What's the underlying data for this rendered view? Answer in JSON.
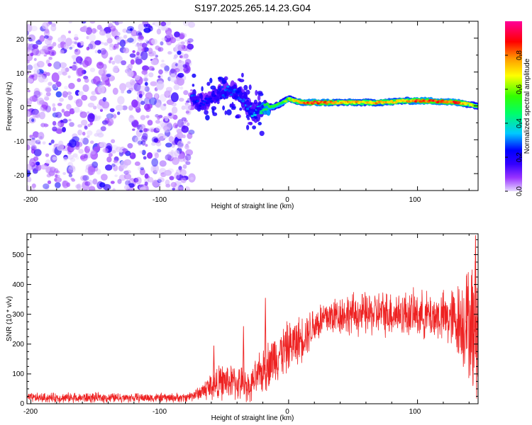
{
  "title": "S197.2025.265.14.23.G04",
  "chart_data": [
    {
      "type": "heatmap",
      "title": "S197.2025.265.14.23.G04",
      "xlabel": "Height of straight line (km)",
      "ylabel": "Frequency (Hz)",
      "xlim": [
        -203,
        147
      ],
      "ylim": [
        -25,
        25
      ],
      "xticks": [
        -200,
        -100,
        0,
        100
      ],
      "xtick_labels": [
        "-200",
        "-100",
        "0",
        "100"
      ],
      "yticks": [
        -20,
        -10,
        0,
        10,
        20
      ],
      "ytick_labels": [
        "-20",
        "-10",
        "0",
        "10",
        "20"
      ],
      "noise_region_x": [
        -203,
        -75
      ],
      "noise_amplitude": [
        0.1,
        0.25
      ],
      "signal_ridge": [
        {
          "x": -75,
          "f": 3.0,
          "amp": 0.3
        },
        {
          "x": -70,
          "f": 1.5,
          "amp": 0.25
        },
        {
          "x": -65,
          "f": 1.0,
          "amp": 0.25
        },
        {
          "x": -60,
          "f": 3.0,
          "amp": 0.25
        },
        {
          "x": -55,
          "f": 3.5,
          "amp": 0.25
        },
        {
          "x": -50,
          "f": 4.0,
          "amp": 0.3
        },
        {
          "x": -45,
          "f": 5.0,
          "amp": 0.3
        },
        {
          "x": -40,
          "f": 3.5,
          "amp": 0.3
        },
        {
          "x": -35,
          "f": 2.0,
          "amp": 0.3
        },
        {
          "x": -30,
          "f": -1.0,
          "amp": 0.35
        },
        {
          "x": -25,
          "f": -2.0,
          "amp": 0.4
        },
        {
          "x": -20,
          "f": -1.0,
          "amp": 0.5
        },
        {
          "x": -15,
          "f": -0.5,
          "amp": 0.55
        },
        {
          "x": -10,
          "f": 0.0,
          "amp": 0.55
        },
        {
          "x": -5,
          "f": 1.0,
          "amp": 0.55
        },
        {
          "x": 0,
          "f": 2.0,
          "amp": 0.65
        },
        {
          "x": 5,
          "f": 1.5,
          "amp": 0.7
        },
        {
          "x": 10,
          "f": 1.0,
          "amp": 0.85
        },
        {
          "x": 20,
          "f": 1.0,
          "amp": 0.9
        },
        {
          "x": 30,
          "f": 1.0,
          "amp": 0.85
        },
        {
          "x": 40,
          "f": 1.0,
          "amp": 0.75
        },
        {
          "x": 50,
          "f": 1.0,
          "amp": 0.8
        },
        {
          "x": 60,
          "f": 1.0,
          "amp": 0.75
        },
        {
          "x": 70,
          "f": 1.0,
          "amp": 0.8
        },
        {
          "x": 80,
          "f": 1.2,
          "amp": 0.8
        },
        {
          "x": 90,
          "f": 1.5,
          "amp": 0.75
        },
        {
          "x": 100,
          "f": 1.5,
          "amp": 0.9
        },
        {
          "x": 110,
          "f": 1.5,
          "amp": 0.9
        },
        {
          "x": 120,
          "f": 1.3,
          "amp": 0.85
        },
        {
          "x": 130,
          "f": 1.0,
          "amp": 0.9
        },
        {
          "x": 140,
          "f": 0.5,
          "amp": 0.7
        },
        {
          "x": 147,
          "f": 0.0,
          "amp": 0.6
        }
      ],
      "colorbar": {
        "label": "Normalized spectral amplitude",
        "ticks": [
          0.0,
          0.2,
          0.4,
          0.6,
          0.8
        ],
        "tick_labels": [
          "0.0",
          "0.2",
          "0.4",
          "0.6",
          "0.8"
        ],
        "range": [
          0.0,
          1.0
        ],
        "colors": [
          "#e6d9ff",
          "#7a00ff",
          "#0000ff",
          "#00c8ff",
          "#00ff00",
          "#ffff00",
          "#ff9900",
          "#ff0000",
          "#ff00aa"
        ]
      }
    },
    {
      "type": "line",
      "xlabel": "Height of straight line (km)",
      "ylabel": "SNR (10 * v/v)",
      "xlim": [
        -203,
        147
      ],
      "ylim": [
        0,
        570
      ],
      "xticks": [
        -200,
        -100,
        0,
        100
      ],
      "xtick_labels": [
        "-200",
        "-100",
        "0",
        "100"
      ],
      "yticks": [
        0,
        100,
        200,
        300,
        400,
        500
      ],
      "ytick_labels": [
        "0",
        "100",
        "200",
        "300",
        "400",
        "500"
      ],
      "color": "#ee2222",
      "envelope": [
        {
          "x": -203,
          "mean": 20,
          "spread": 18
        },
        {
          "x": -160,
          "mean": 20,
          "spread": 20
        },
        {
          "x": -120,
          "mean": 20,
          "spread": 18
        },
        {
          "x": -80,
          "mean": 20,
          "spread": 18
        },
        {
          "x": -70,
          "mean": 35,
          "spread": 25
        },
        {
          "x": -60,
          "mean": 60,
          "spread": 60
        },
        {
          "x": -50,
          "mean": 75,
          "spread": 70
        },
        {
          "x": -40,
          "mean": 70,
          "spread": 70
        },
        {
          "x": -30,
          "mean": 60,
          "spread": 60
        },
        {
          "x": -20,
          "mean": 110,
          "spread": 90
        },
        {
          "x": -10,
          "mean": 160,
          "spread": 100
        },
        {
          "x": 0,
          "mean": 190,
          "spread": 100
        },
        {
          "x": 10,
          "mean": 220,
          "spread": 90
        },
        {
          "x": 20,
          "mean": 265,
          "spread": 80
        },
        {
          "x": 30,
          "mean": 290,
          "spread": 80
        },
        {
          "x": 40,
          "mean": 300,
          "spread": 80
        },
        {
          "x": 60,
          "mean": 300,
          "spread": 85
        },
        {
          "x": 80,
          "mean": 305,
          "spread": 90
        },
        {
          "x": 100,
          "mean": 300,
          "spread": 90
        },
        {
          "x": 120,
          "mean": 290,
          "spread": 100
        },
        {
          "x": 130,
          "mean": 280,
          "spread": 140
        },
        {
          "x": 140,
          "mean": 270,
          "spread": 220
        },
        {
          "x": 147,
          "mean": 250,
          "spread": 300
        }
      ],
      "spikes": [
        {
          "x": -18,
          "y": 355
        },
        {
          "x": -35,
          "y": 260
        },
        {
          "x": -58,
          "y": 195
        },
        {
          "x": 138,
          "y": 430
        },
        {
          "x": 145,
          "y": 565
        },
        {
          "x": 143,
          "y": 60
        }
      ]
    }
  ]
}
